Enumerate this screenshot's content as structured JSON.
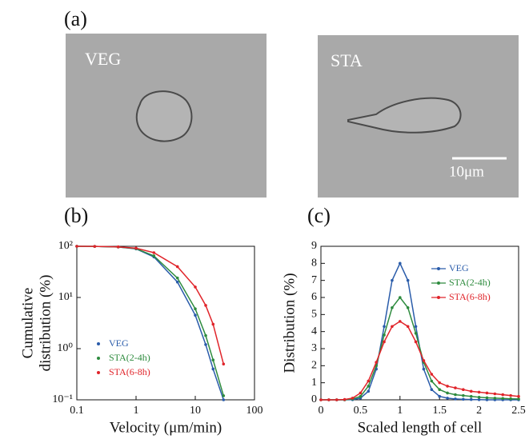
{
  "panels": [
    "(a)",
    "(b)",
    "(c)"
  ],
  "images": [
    {
      "label": "VEG"
    },
    {
      "label": "STA",
      "scale_bar": "10μm"
    }
  ],
  "chart_data": [
    {
      "type": "line",
      "markers": true,
      "log_x": true,
      "log_y": true,
      "xlabel": "Velocity (μm/min)",
      "ylabel": [
        "Cumulative",
        "distribution (%)"
      ],
      "x": [
        0.1,
        0.2,
        0.5,
        1,
        2,
        5,
        10,
        15,
        20,
        30
      ],
      "series": [
        {
          "name": "VEG",
          "color": "#2a5caa",
          "values": [
            100,
            99.5,
            97,
            89,
            62,
            20,
            4.5,
            1.2,
            0.4,
            0.1
          ]
        },
        {
          "name": "STA(2-4h)",
          "color": "#2e8b3e",
          "values": [
            100,
            99.5,
            97,
            90,
            65,
            24,
            6,
            1.8,
            0.6,
            0.12
          ]
        },
        {
          "name": "STA(6-8h)",
          "color": "#e0242a",
          "values": [
            100,
            99.5,
            97.5,
            92,
            75,
            40,
            16,
            7,
            3,
            0.5
          ]
        }
      ],
      "xlim": [
        0.1,
        100
      ],
      "ylim": [
        0.1,
        100
      ],
      "xticks": [
        0.1,
        1,
        10,
        100
      ],
      "yticks": [
        {
          "value": 0.1,
          "label": "10⁻¹"
        },
        {
          "value": 1,
          "label": "10⁰"
        },
        {
          "value": 10,
          "label": "10¹"
        },
        {
          "value": 100,
          "label": "10²"
        }
      ],
      "legend": "lower left"
    },
    {
      "type": "line",
      "markers": true,
      "log_x": false,
      "log_y": false,
      "xlabel": "Scaled length of cell",
      "ylabel": [
        "Distribution (%)"
      ],
      "x": [
        0,
        0.1,
        0.2,
        0.3,
        0.4,
        0.5,
        0.6,
        0.7,
        0.8,
        0.9,
        1,
        1.1,
        1.2,
        1.3,
        1.4,
        1.5,
        1.6,
        1.7,
        1.8,
        1.9,
        2,
        2.1,
        2.2,
        2.3,
        2.4,
        2.5
      ],
      "series": [
        {
          "name": "VEG",
          "color": "#2a5caa",
          "values": [
            0,
            0,
            0,
            0,
            0.01,
            0.1,
            0.5,
            1.8,
            4.3,
            7,
            8,
            7,
            4.3,
            1.8,
            0.6,
            0.2,
            0.1,
            0.05,
            0.03,
            0.02,
            0.01,
            0,
            0,
            0,
            0,
            0
          ]
        },
        {
          "name": "STA(2-4h)",
          "color": "#2e8b3e",
          "values": [
            0,
            0,
            0,
            0,
            0.05,
            0.2,
            0.8,
            2,
            3.8,
            5.4,
            6,
            5.4,
            3.9,
            2.2,
            1.1,
            0.6,
            0.4,
            0.3,
            0.25,
            0.2,
            0.15,
            0.12,
            0.1,
            0.08,
            0.06,
            0.05
          ]
        },
        {
          "name": "STA(6-8h)",
          "color": "#e0242a",
          "values": [
            0,
            0,
            0,
            0.02,
            0.1,
            0.4,
            1.1,
            2.2,
            3.4,
            4.3,
            4.6,
            4.3,
            3.4,
            2.3,
            1.5,
            1,
            0.8,
            0.7,
            0.6,
            0.5,
            0.45,
            0.4,
            0.35,
            0.3,
            0.25,
            0.2
          ]
        }
      ],
      "xlim": [
        0,
        2.5
      ],
      "ylim": [
        0,
        9
      ],
      "xticks": [
        0,
        0.5,
        1,
        1.5,
        2,
        2.5
      ],
      "yticks": [
        0,
        1,
        2,
        3,
        4,
        5,
        6,
        7,
        8,
        9
      ],
      "legend": "upper right"
    }
  ]
}
